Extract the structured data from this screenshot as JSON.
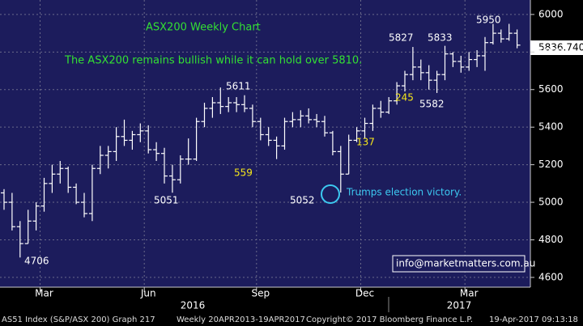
{
  "chart_data": {
    "type": "ohlc",
    "title": "ASX200 Weekly Chart",
    "subtitle": "The ASX200 remains bullish while it can hold over 5810.",
    "categories": [
      null,
      null,
      null,
      null,
      null,
      "Mar",
      null,
      null,
      null,
      null,
      null,
      null,
      null,
      null,
      null,
      null,
      null,
      null,
      "Jun",
      null,
      null,
      null,
      null,
      null,
      null,
      null,
      null,
      null,
      null,
      null,
      null,
      null,
      "Sep",
      null,
      null,
      null,
      null,
      null,
      null,
      null,
      null,
      null,
      null,
      null,
      null,
      "Dec",
      null,
      null,
      null,
      null,
      null,
      null,
      null,
      null,
      null,
      null,
      null,
      null,
      "Mar",
      null,
      null,
      null,
      null,
      null,
      null
    ],
    "years": [
      "2016",
      "2017"
    ],
    "open": [
      5050,
      5000,
      4870,
      4780,
      4900,
      4980,
      5100,
      5150,
      5180,
      5080,
      5000,
      4940,
      5180,
      5250,
      5270,
      5350,
      5330,
      5360,
      5380,
      5280,
      5260,
      5140,
      5120,
      5230,
      5230,
      5430,
      5500,
      5530,
      5510,
      5530,
      5520,
      5500,
      5430,
      5360,
      5330,
      5300,
      5430,
      5440,
      5460,
      5440,
      5430,
      5370,
      5270,
      5150,
      5330,
      5380,
      5420,
      5500,
      5480,
      5540,
      5620,
      5680,
      5720,
      5690,
      5650,
      5680,
      5790,
      5750,
      5720,
      5760,
      5780,
      5850,
      5900,
      5870,
      5900
    ],
    "high": [
      5070,
      5050,
      4900,
      4960,
      5000,
      5130,
      5200,
      5220,
      5190,
      5100,
      5050,
      5200,
      5300,
      5300,
      5400,
      5440,
      5380,
      5420,
      5410,
      5320,
      5290,
      5200,
      5250,
      5340,
      5450,
      5530,
      5560,
      5611,
      5560,
      5560,
      5570,
      5520,
      5450,
      5400,
      5350,
      5450,
      5480,
      5490,
      5500,
      5470,
      5460,
      5380,
      5300,
      5360,
      5400,
      5450,
      5520,
      5540,
      5560,
      5640,
      5700,
      5827,
      5760,
      5730,
      5700,
      5833,
      5800,
      5780,
      5800,
      5810,
      5880,
      5950,
      5920,
      5950,
      5920
    ],
    "low": [
      4960,
      4850,
      4706,
      4780,
      4850,
      4950,
      5050,
      5100,
      5050,
      4990,
      4920,
      4900,
      5150,
      5180,
      5220,
      5300,
      5280,
      5320,
      5260,
      5220,
      5100,
      5051,
      5100,
      5200,
      5220,
      5400,
      5450,
      5470,
      5480,
      5480,
      5480,
      5400,
      5330,
      5300,
      5230,
      5280,
      5400,
      5400,
      5420,
      5400,
      5350,
      5250,
      5052,
      5150,
      5320,
      5340,
      5380,
      5450,
      5470,
      5520,
      5590,
      5650,
      5650,
      5600,
      5582,
      5650,
      5720,
      5690,
      5700,
      5720,
      5700,
      5840,
      5850,
      5860,
      5820
    ],
    "close": [
      5000,
      4870,
      4780,
      4900,
      4980,
      5100,
      5150,
      5180,
      5080,
      5000,
      4940,
      5180,
      5250,
      5270,
      5350,
      5330,
      5360,
      5380,
      5280,
      5260,
      5140,
      5120,
      5230,
      5230,
      5430,
      5500,
      5530,
      5510,
      5530,
      5520,
      5500,
      5430,
      5360,
      5330,
      5300,
      5430,
      5440,
      5460,
      5440,
      5430,
      5370,
      5270,
      5150,
      5330,
      5380,
      5420,
      5500,
      5480,
      5540,
      5620,
      5680,
      5720,
      5690,
      5650,
      5680,
      5790,
      5750,
      5720,
      5760,
      5780,
      5850,
      5900,
      5870,
      5900,
      5836.74
    ],
    "color": "#ffffff",
    "last_price_label": "5836.740",
    "ylim": [
      4548,
      6077
    ],
    "yticks": [
      4600,
      4800,
      5000,
      5200,
      5400,
      5600,
      5800,
      6000
    ],
    "grid": true,
    "annotations": [
      {
        "text": "4706",
        "color": "#ffffff"
      },
      {
        "text": "5051",
        "color": "#ffffff"
      },
      {
        "text": "5611",
        "color": "#ffffff"
      },
      {
        "text": "559",
        "color": "#f5e61a"
      },
      {
        "text": "5052",
        "color": "#ffffff"
      },
      {
        "text": "137",
        "color": "#f5e61a"
      },
      {
        "text": "5827",
        "color": "#ffffff"
      },
      {
        "text": "245",
        "color": "#f5e61a"
      },
      {
        "text": "5833",
        "color": "#ffffff"
      },
      {
        "text": "5582",
        "color": "#ffffff"
      },
      {
        "text": "5950",
        "color": "#ffffff"
      },
      {
        "text": "Trumps election victory.",
        "color": "#3cc8f0"
      }
    ],
    "contact": "info@marketmatters.com.au",
    "footer": [
      "AS51 Index (S&P/ASX 200) Graph 217",
      "Weekly 20APR2013-19APR2017",
      "Copyright© 2017 Bloomberg Finance L.P.",
      "19-Apr-2017 09:13:18"
    ]
  }
}
